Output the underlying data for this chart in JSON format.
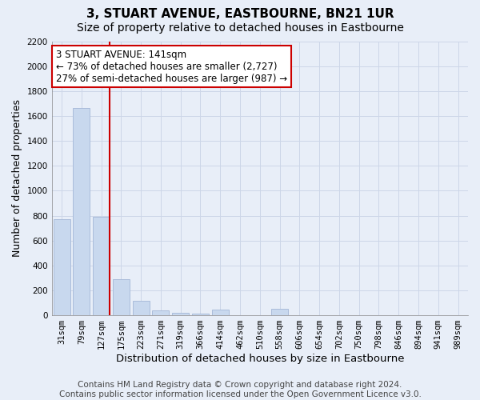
{
  "title": "3, STUART AVENUE, EASTBOURNE, BN21 1UR",
  "subtitle": "Size of property relative to detached houses in Eastbourne",
  "xlabel": "Distribution of detached houses by size in Eastbourne",
  "ylabel": "Number of detached properties",
  "footer_line1": "Contains HM Land Registry data © Crown copyright and database right 2024.",
  "footer_line2": "Contains public sector information licensed under the Open Government Licence v3.0.",
  "categories": [
    "31sqm",
    "79sqm",
    "127sqm",
    "175sqm",
    "223sqm",
    "271sqm",
    "319sqm",
    "366sqm",
    "414sqm",
    "462sqm",
    "510sqm",
    "558sqm",
    "606sqm",
    "654sqm",
    "702sqm",
    "750sqm",
    "798sqm",
    "846sqm",
    "894sqm",
    "941sqm",
    "989sqm"
  ],
  "values": [
    770,
    1665,
    790,
    290,
    115,
    38,
    22,
    16,
    45,
    0,
    0,
    55,
    0,
    0,
    0,
    0,
    0,
    0,
    0,
    0,
    0
  ],
  "bar_color": "#c8d8ee",
  "bar_edge_color": "#aabcda",
  "property_line_color": "#cc0000",
  "annotation_line1": "3 STUART AVENUE: 141sqm",
  "annotation_line2": "← 73% of detached houses are smaller (2,727)",
  "annotation_line3": "27% of semi-detached houses are larger (987) →",
  "annotation_box_color": "#ffffff",
  "annotation_box_edge": "#cc0000",
  "ylim": [
    0,
    2200
  ],
  "yticks": [
    0,
    200,
    400,
    600,
    800,
    1000,
    1200,
    1400,
    1600,
    1800,
    2000,
    2200
  ],
  "grid_color": "#ccd6e8",
  "background_color": "#e8eef8",
  "title_fontsize": 11,
  "subtitle_fontsize": 10,
  "tick_fontsize": 7.5,
  "ylabel_fontsize": 9,
  "xlabel_fontsize": 9.5,
  "footer_fontsize": 7.5,
  "annotation_fontsize": 8.5
}
